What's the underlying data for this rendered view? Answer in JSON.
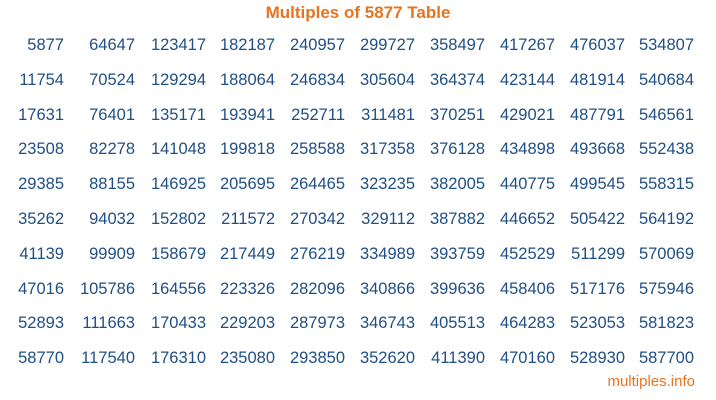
{
  "title": "Multiples of 5877 Table",
  "accent_color": "#e8731f",
  "number_color": "#1f4f86",
  "rows": [
    [
      "5877",
      "64647",
      "123417",
      "182187",
      "240957",
      "299727",
      "358497",
      "417267",
      "476037",
      "534807"
    ],
    [
      "11754",
      "70524",
      "129294",
      "188064",
      "246834",
      "305604",
      "364374",
      "423144",
      "481914",
      "540684"
    ],
    [
      "17631",
      "76401",
      "135171",
      "193941",
      "252711",
      "311481",
      "370251",
      "429021",
      "487791",
      "546561"
    ],
    [
      "23508",
      "82278",
      "141048",
      "199818",
      "258588",
      "317358",
      "376128",
      "434898",
      "493668",
      "552438"
    ],
    [
      "29385",
      "88155",
      "146925",
      "205695",
      "264465",
      "323235",
      "382005",
      "440775",
      "499545",
      "558315"
    ],
    [
      "35262",
      "94032",
      "152802",
      "211572",
      "270342",
      "329112",
      "387882",
      "446652",
      "505422",
      "564192"
    ],
    [
      "41139",
      "99909",
      "158679",
      "217449",
      "276219",
      "334989",
      "393759",
      "452529",
      "511299",
      "570069"
    ],
    [
      "47016",
      "105786",
      "164556",
      "223326",
      "282096",
      "340866",
      "399636",
      "458406",
      "517176",
      "575946"
    ],
    [
      "52893",
      "111663",
      "170433",
      "229203",
      "287973",
      "346743",
      "405513",
      "464283",
      "523053",
      "581823"
    ],
    [
      "58770",
      "117540",
      "176310",
      "235080",
      "293850",
      "352620",
      "411390",
      "470160",
      "528930",
      "587700"
    ]
  ],
  "footer": "multiples.info"
}
